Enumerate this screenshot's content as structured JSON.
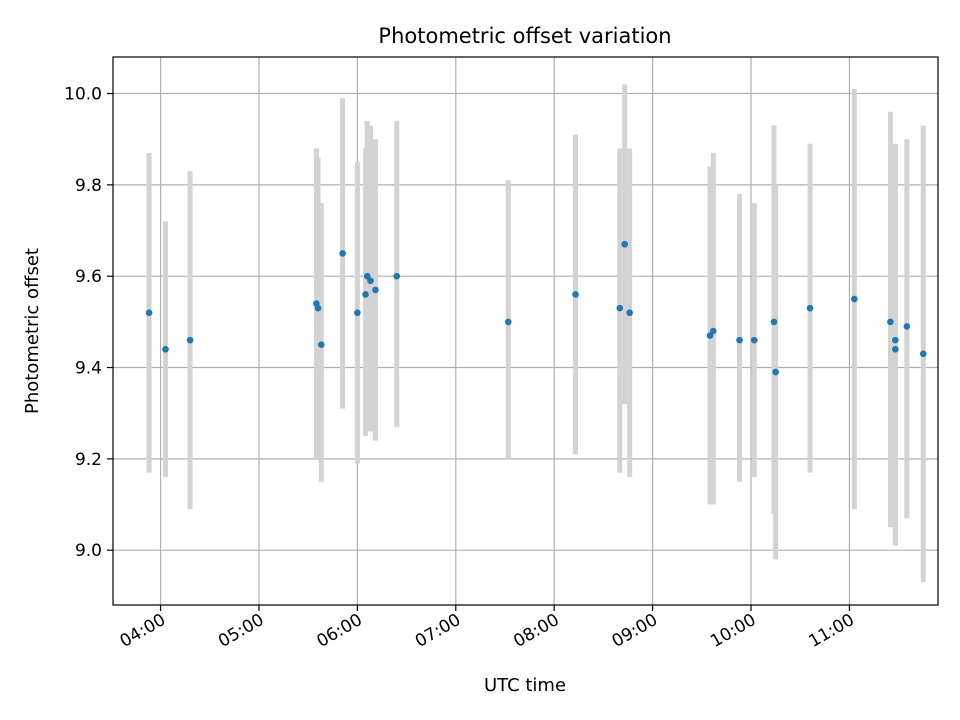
{
  "chart_data": {
    "type": "scatter",
    "title": "Photometric offset variation",
    "xlabel": "UTC time",
    "ylabel": "Photometric offset",
    "x_axis_type": "time",
    "xlim": [
      "03:31",
      "11:54"
    ],
    "ylim": [
      8.88,
      10.08
    ],
    "grid": true,
    "x_ticks": [
      "04:00",
      "05:00",
      "06:00",
      "07:00",
      "08:00",
      "09:00",
      "10:00",
      "11:00"
    ],
    "y_ticks": [
      "9.0",
      "9.2",
      "9.4",
      "9.6",
      "9.8",
      "10.0"
    ],
    "marker_color": "#1f77b4",
    "errorbar_color": "#d3d3d3",
    "series": [
      {
        "points": [
          {
            "x": "03:53",
            "y": 9.52,
            "ylow": 9.17,
            "yhigh": 9.87
          },
          {
            "x": "04:03",
            "y": 9.44,
            "ylow": 9.16,
            "yhigh": 9.72
          },
          {
            "x": "04:18",
            "y": 9.46,
            "ylow": 9.09,
            "yhigh": 9.83
          },
          {
            "x": "05:35",
            "y": 9.54,
            "ylow": 9.2,
            "yhigh": 9.88
          },
          {
            "x": "05:36",
            "y": 9.53,
            "ylow": 9.21,
            "yhigh": 9.86
          },
          {
            "x": "05:38",
            "y": 9.45,
            "ylow": 9.15,
            "yhigh": 9.76
          },
          {
            "x": "05:51",
            "y": 9.65,
            "ylow": 9.31,
            "yhigh": 9.99
          },
          {
            "x": "06:00",
            "y": 9.52,
            "ylow": 9.19,
            "yhigh": 9.85
          },
          {
            "x": "06:05",
            "y": 9.56,
            "ylow": 9.25,
            "yhigh": 9.88
          },
          {
            "x": "06:06",
            "y": 9.6,
            "ylow": 9.26,
            "yhigh": 9.94
          },
          {
            "x": "06:08",
            "y": 9.59,
            "ylow": 9.26,
            "yhigh": 9.93
          },
          {
            "x": "06:11",
            "y": 9.57,
            "ylow": 9.24,
            "yhigh": 9.9
          },
          {
            "x": "06:24",
            "y": 9.6,
            "ylow": 9.27,
            "yhigh": 9.94
          },
          {
            "x": "07:32",
            "y": 9.5,
            "ylow": 9.2,
            "yhigh": 9.81
          },
          {
            "x": "08:13",
            "y": 9.56,
            "ylow": 9.21,
            "yhigh": 9.91
          },
          {
            "x": "08:40",
            "y": 9.53,
            "ylow": 9.17,
            "yhigh": 9.88
          },
          {
            "x": "08:43",
            "y": 9.67,
            "ylow": 9.32,
            "yhigh": 10.02
          },
          {
            "x": "08:46",
            "y": 9.52,
            "ylow": 9.16,
            "yhigh": 9.88
          },
          {
            "x": "09:35",
            "y": 9.47,
            "ylow": 9.1,
            "yhigh": 9.84
          },
          {
            "x": "09:37",
            "y": 9.48,
            "ylow": 9.1,
            "yhigh": 9.87
          },
          {
            "x": "09:53",
            "y": 9.46,
            "ylow": 9.15,
            "yhigh": 9.78
          },
          {
            "x": "10:02",
            "y": 9.46,
            "ylow": 9.16,
            "yhigh": 9.76
          },
          {
            "x": "10:14",
            "y": 9.5,
            "ylow": 9.08,
            "yhigh": 9.93
          },
          {
            "x": "10:15",
            "y": 9.39,
            "ylow": 8.98,
            "yhigh": 9.8
          },
          {
            "x": "10:36",
            "y": 9.53,
            "ylow": 9.17,
            "yhigh": 9.89
          },
          {
            "x": "11:03",
            "y": 9.55,
            "ylow": 9.09,
            "yhigh": 10.01
          },
          {
            "x": "11:25",
            "y": 9.5,
            "ylow": 9.05,
            "yhigh": 9.96
          },
          {
            "x": "11:28",
            "y": 9.44,
            "ylow": 9.01,
            "yhigh": 9.88
          },
          {
            "x": "11:28",
            "y": 9.46,
            "ylow": 9.02,
            "yhigh": 9.89
          },
          {
            "x": "11:35",
            "y": 9.49,
            "ylow": 9.07,
            "yhigh": 9.9
          },
          {
            "x": "11:45",
            "y": 9.43,
            "ylow": 8.93,
            "yhigh": 9.93
          }
        ]
      }
    ]
  }
}
